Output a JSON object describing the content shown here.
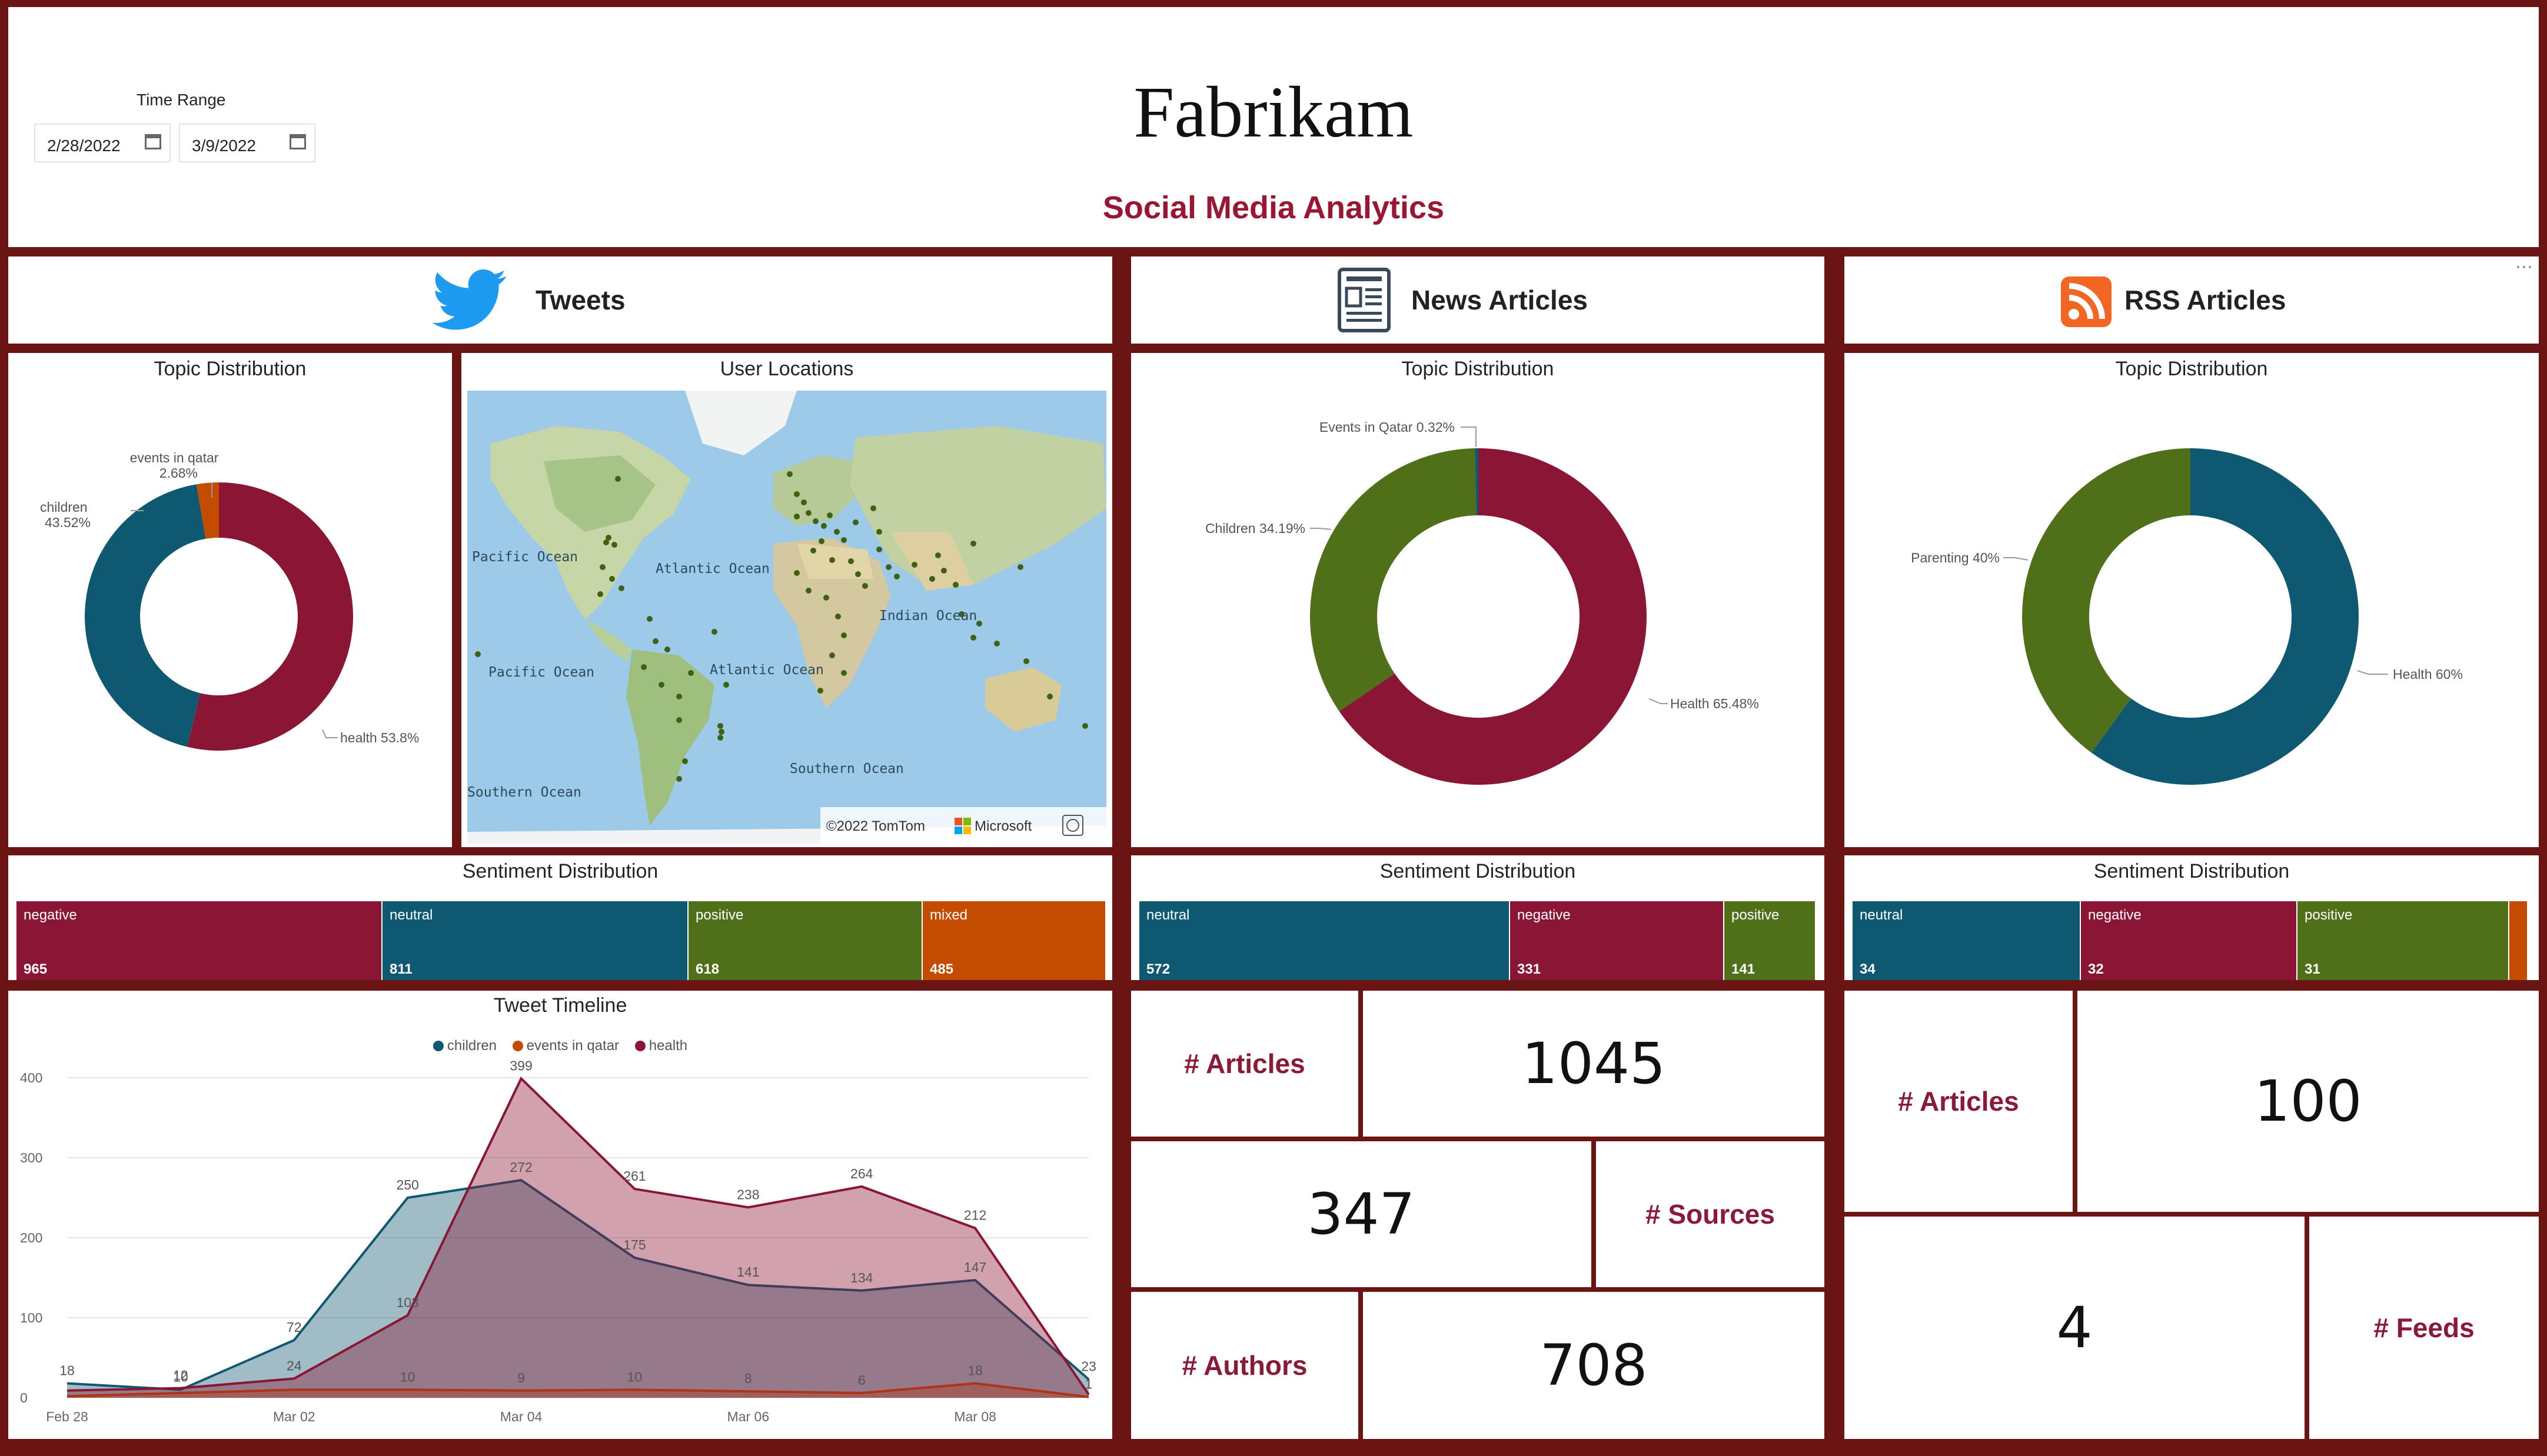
{
  "header": {
    "brand": "Fabrikam",
    "subtitle": "Social Media Analytics",
    "time_range_label": "Time Range",
    "start_date": "2/28/2022",
    "end_date": "3/9/2022"
  },
  "colors": {
    "health": "#8b1535",
    "children": "#0e5872",
    "events": "#c34c00",
    "parenting": "#4f7018",
    "positive": "#4f7018",
    "frame": "#6b1414"
  },
  "tweets": {
    "section_title": "Tweets",
    "topic_title": "Topic Distribution",
    "topic_labels": {
      "events": "events in qatar",
      "events_pct": "2.68%",
      "children": "children",
      "children_pct": "43.52%",
      "health": "health 53.8%"
    },
    "map_title": "User Locations",
    "map_labels": [
      "Pacific Ocean",
      "Atlantic Ocean",
      "Indian Ocean",
      "Pacific Ocean",
      "Atlantic Ocean",
      "Southern Ocean",
      "Southern Ocean"
    ],
    "map_credit": "©2022 TomTom",
    "map_brand": "Microsoft",
    "sentiment_title": "Sentiment Distribution",
    "sentiment": [
      {
        "label": "negative",
        "value": "965"
      },
      {
        "label": "neutral",
        "value": "811"
      },
      {
        "label": "positive",
        "value": "618"
      },
      {
        "label": "mixed",
        "value": "485"
      }
    ],
    "timeline_title": "Tweet Timeline",
    "legend": [
      "children",
      "events in qatar",
      "health"
    ]
  },
  "news": {
    "section_title": "News Articles",
    "topic_title": "Topic Distribution",
    "topic_labels": {
      "events": "Events in Qatar 0.32%",
      "children": "Children 34.19%",
      "health": "Health 65.48%"
    },
    "sentiment_title": "Sentiment Distribution",
    "sentiment": [
      {
        "label": "neutral",
        "value": "572"
      },
      {
        "label": "negative",
        "value": "331"
      },
      {
        "label": "positive",
        "value": "141"
      }
    ],
    "kpi": {
      "articles_label": "# Articles",
      "articles_value": "1045",
      "sources_label": "# Sources",
      "sources_value": "347",
      "authors_label": "# Authors",
      "authors_value": "708"
    }
  },
  "rss": {
    "section_title": "RSS Articles",
    "topic_title": "Topic Distribution",
    "topic_labels": {
      "parenting": "Parenting 40%",
      "health": "Health 60%"
    },
    "sentiment_title": "Sentiment Distribution",
    "sentiment": [
      {
        "label": "neutral",
        "value": "34"
      },
      {
        "label": "negative",
        "value": "32"
      },
      {
        "label": "positive",
        "value": "31"
      }
    ],
    "kpi": {
      "articles_label": "# Articles",
      "articles_value": "100",
      "feeds_label": "# Feeds",
      "feeds_value": "4"
    }
  },
  "chart_data": [
    {
      "type": "pie",
      "title": "Topic Distribution",
      "labels": [
        "health",
        "children",
        "events in qatar"
      ],
      "values": [
        53.8,
        43.52,
        2.68
      ]
    },
    {
      "type": "pie",
      "title": "Topic Distribution",
      "labels": [
        "Health",
        "Children",
        "Events in Qatar"
      ],
      "values": [
        65.48,
        34.19,
        0.32
      ]
    },
    {
      "type": "pie",
      "title": "Topic Distribution",
      "labels": [
        "Health",
        "Parenting"
      ],
      "values": [
        60,
        40
      ]
    },
    {
      "type": "bar",
      "title": "Sentiment Distribution",
      "categories": [
        "negative",
        "neutral",
        "positive",
        "mixed"
      ],
      "values": [
        965,
        811,
        618,
        485
      ]
    },
    {
      "type": "bar",
      "title": "Sentiment Distribution",
      "categories": [
        "neutral",
        "negative",
        "positive"
      ],
      "values": [
        572,
        331,
        141
      ]
    },
    {
      "type": "bar",
      "title": "Sentiment Distribution",
      "categories": [
        "neutral",
        "negative",
        "positive"
      ],
      "values": [
        34,
        32,
        31
      ]
    },
    {
      "type": "area",
      "title": "Tweet Timeline",
      "x": [
        "Feb 28",
        "Mar 01",
        "Mar 02",
        "Mar 03",
        "Mar 04",
        "Mar 05",
        "Mar 06",
        "Mar 07",
        "Mar 08",
        "Mar 09"
      ],
      "x_tick_labels": [
        "Feb 28",
        "Mar 02",
        "Mar 04",
        "Mar 06",
        "Mar 08"
      ],
      "y_ticks": [
        "0",
        "100",
        "200",
        "300",
        "400"
      ],
      "ylim": [
        0,
        400
      ],
      "series": [
        {
          "name": "children",
          "values": [
            18,
            10,
            72,
            250,
            272,
            175,
            141,
            134,
            147,
            23
          ],
          "labels": [
            "18",
            "10",
            "72",
            "250",
            "272",
            "175",
            "141",
            "134",
            "147",
            "23"
          ]
        },
        {
          "name": "events in qatar",
          "values": [
            2,
            6,
            10,
            10,
            9,
            10,
            8,
            6,
            18,
            1
          ],
          "labels": [
            "",
            "",
            "",
            "10",
            "9",
            "10",
            "8",
            "6",
            "18",
            "1"
          ]
        },
        {
          "name": "health",
          "values": [
            9,
            12,
            24,
            103,
            399,
            261,
            238,
            264,
            212,
            4
          ],
          "labels": [
            "",
            "12",
            "24",
            "103",
            "399",
            "261",
            "238",
            "264",
            "212",
            ""
          ]
        }
      ]
    }
  ]
}
